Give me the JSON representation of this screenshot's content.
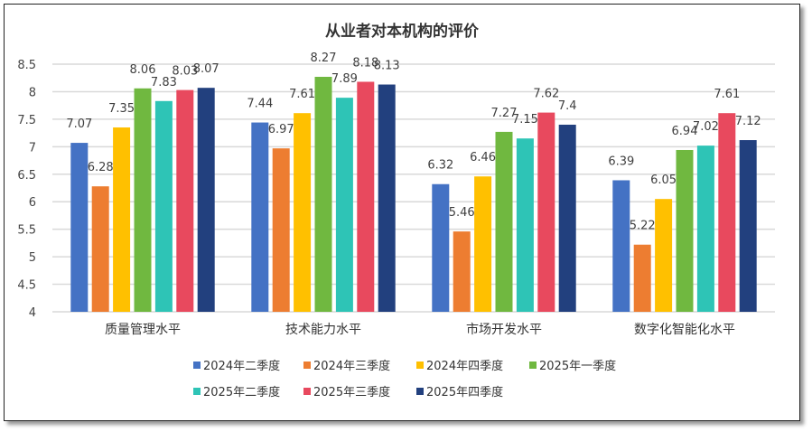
{
  "chart_data": {
    "type": "bar",
    "title": "从业者对本机构的评价",
    "categories": [
      "质量管理水平",
      "技术能力水平",
      "市场开发水平",
      "数字化智能化水平"
    ],
    "series": [
      {
        "name": "2024年二季度",
        "color": "#4472C4",
        "values": [
          7.07,
          7.44,
          6.32,
          6.39
        ]
      },
      {
        "name": "2024年三季度",
        "color": "#ED7D31",
        "values": [
          6.28,
          6.97,
          5.46,
          5.22
        ]
      },
      {
        "name": "2024年四季度",
        "color": "#FFC000",
        "values": [
          7.35,
          7.61,
          6.46,
          6.05
        ]
      },
      {
        "name": "2025年一季度",
        "color": "#70B840",
        "values": [
          8.06,
          8.27,
          7.27,
          6.94
        ]
      },
      {
        "name": "2025年二季度",
        "color": "#2EC4B6",
        "values": [
          7.83,
          7.89,
          7.15,
          7.02
        ]
      },
      {
        "name": "2025年三季度",
        "color": "#E8495E",
        "values": [
          8.03,
          8.18,
          7.62,
          7.61
        ]
      },
      {
        "name": "2025年四季度",
        "color": "#22407E",
        "values": [
          8.07,
          8.13,
          7.4,
          7.12
        ]
      }
    ],
    "ylim": [
      4,
      8.5
    ],
    "yticks": [
      "4",
      "4.5",
      "5",
      "5.5",
      "6",
      "6.5",
      "7",
      "7.5",
      "8",
      "8.5"
    ],
    "grid": true,
    "legend": "bottom"
  }
}
